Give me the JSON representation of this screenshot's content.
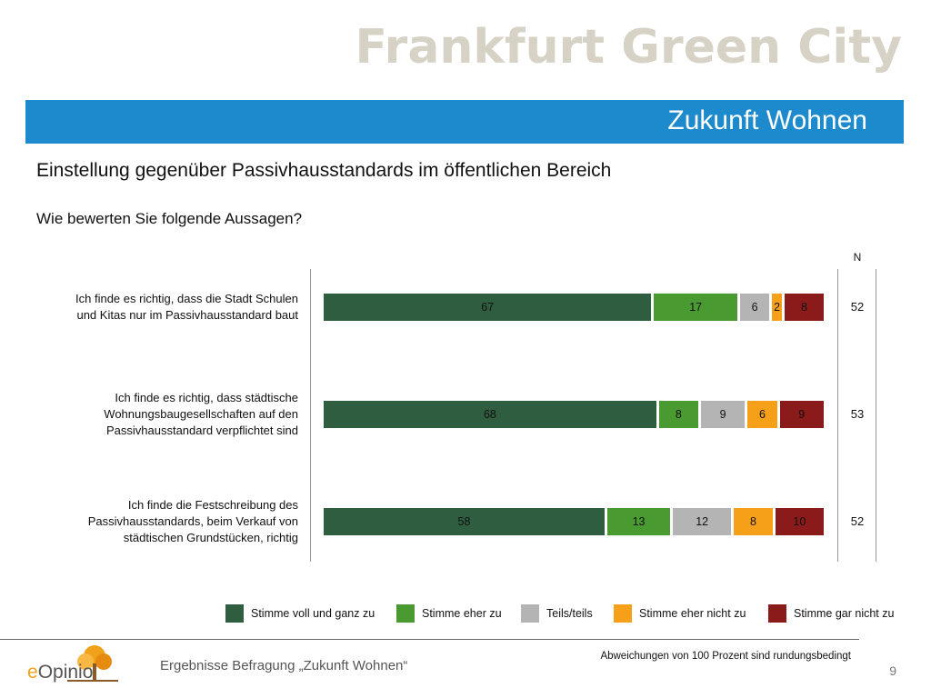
{
  "brand": "Frankfurt Green City",
  "banner_title": "Zukunft Wohnen",
  "heading": "Einstellung gegenüber Passivhausstandards im öffentlichen Bereich",
  "question": "Wie bewerten Sie folgende Aussagen?",
  "n_header": "N",
  "colors": {
    "stimme_voll": "#2e5e3f",
    "stimme_eher": "#4a9a32",
    "teils": "#b4b4b4",
    "eher_nicht": "#f6a01a",
    "gar_nicht": "#8b1a1a"
  },
  "chart_data": {
    "type": "bar",
    "orientation": "horizontal-stacked",
    "categories": [
      [
        "Ich finde es richtig, dass die Stadt Schulen",
        "und Kitas nur im Passivhausstandard baut"
      ],
      [
        "Ich finde es richtig, dass städtische",
        "Wohnungsbaugesellschaften auf den",
        "Passivhausstandard verpflichtet sind"
      ],
      [
        "Ich finde die Festschreibung des",
        "Passivhausstandards, beim Verkauf von",
        "städtischen Grundstücken, richtig"
      ]
    ],
    "series": [
      {
        "name": "Stimme voll und ganz zu",
        "color": "#2e5e3f",
        "values": [
          67,
          68,
          58
        ]
      },
      {
        "name": "Stimme eher zu",
        "color": "#4a9a32",
        "values": [
          17,
          8,
          13
        ]
      },
      {
        "name": "Teils/teils",
        "color": "#b4b4b4",
        "values": [
          6,
          9,
          12
        ]
      },
      {
        "name": "Stimme eher nicht zu",
        "color": "#f6a01a",
        "values": [
          2,
          6,
          8
        ]
      },
      {
        "name": "Stimme gar nicht zu",
        "color": "#8b1a1a",
        "values": [
          8,
          9,
          10
        ]
      }
    ],
    "n": [
      52,
      53,
      52
    ],
    "legend_position": "bottom"
  },
  "footer": {
    "note": "Abweichungen von 100 Prozent sind rundungsbedingt",
    "title": "Ergebnisse Befragung „Zukunft Wohnen“",
    "page": "9",
    "logo_e": "e",
    "logo_rest": "Opinio"
  }
}
